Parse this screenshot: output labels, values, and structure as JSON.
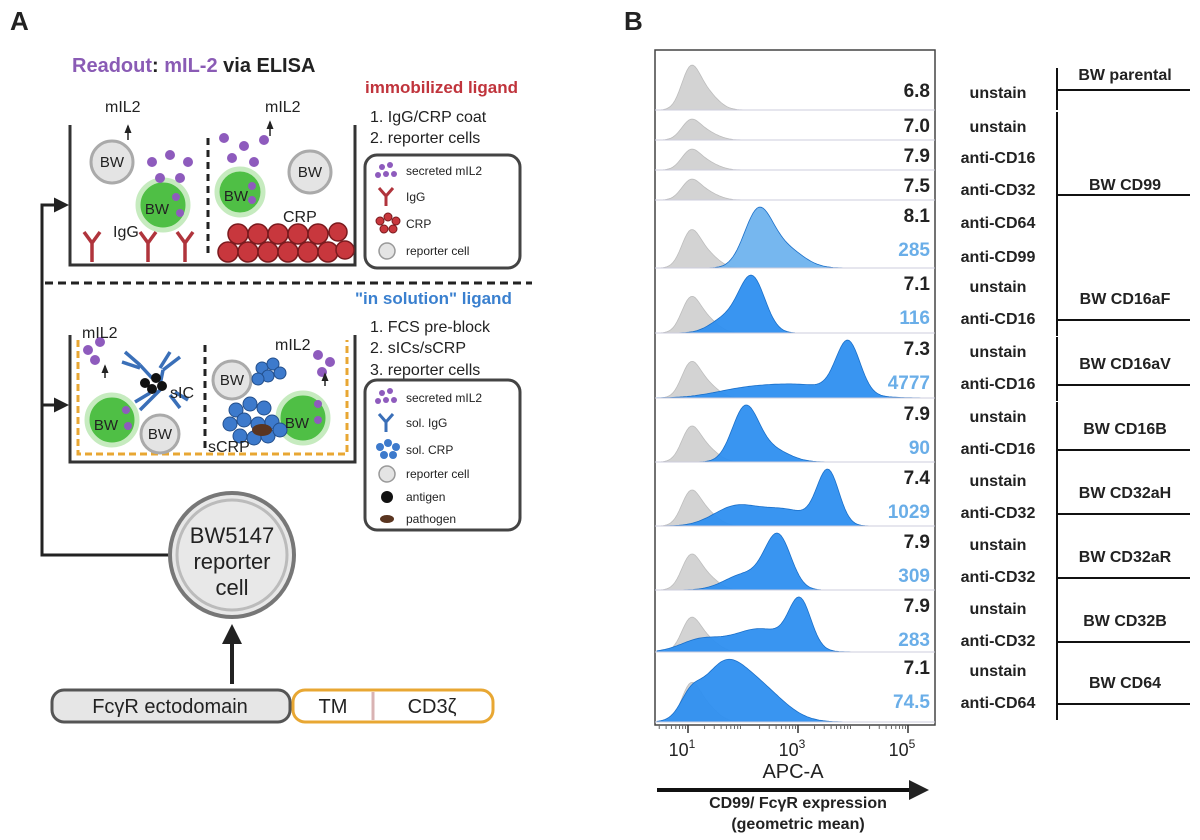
{
  "panel_a": {
    "label": "A",
    "readout": {
      "word": "Readout",
      "colon": ":",
      "target": "mIL-2",
      "method": "via ELISA"
    },
    "immobilized": {
      "title": "immobilized ligand",
      "steps": [
        "1.  IgG/CRP coat",
        "2.  reporter cells"
      ],
      "well": {
        "mil2": "mIL2",
        "igg": "IgG",
        "crp": "CRP"
      },
      "legend": [
        "secreted mIL2",
        "IgG",
        "CRP",
        "reporter cell"
      ]
    },
    "in_solution": {
      "title": "\"in solution\" ligand",
      "steps": [
        "1.  FCS pre-block",
        "2.  sICs/sCRP",
        "3.  reporter cells"
      ],
      "well": {
        "mil2": "mIL2",
        "sic": "sIC",
        "scrp": "sCRP"
      },
      "legend": [
        "secreted mIL2",
        "sol. IgG",
        "sol. CRP",
        "reporter cell",
        "antigen",
        "pathogen"
      ]
    },
    "cell_short": "BW",
    "reporter": [
      "BW5147",
      "reporter",
      "cell"
    ],
    "construct": {
      "ectodomain": "FcγR  ectodomain",
      "tm": "TM",
      "signal": "CD3ζ"
    }
  },
  "panel_b": {
    "label": "B",
    "lanes": [
      {
        "unstained": "6.8"
      },
      {
        "unstained": "7.0"
      },
      {
        "unstained": "7.9"
      },
      {
        "unstained": "7.5"
      },
      {
        "unstained": "8.1",
        "stained": "285"
      },
      {
        "unstained": "7.1",
        "stained": "116"
      },
      {
        "unstained": "7.3",
        "stained": "4777"
      },
      {
        "unstained": "7.9",
        "stained": "90"
      },
      {
        "unstained": "7.4",
        "stained": "1029"
      },
      {
        "unstained": "7.9",
        "stained": "309"
      },
      {
        "unstained": "7.9",
        "stained": "283"
      },
      {
        "unstained": "7.1",
        "stained": "74.5"
      }
    ],
    "groups": [
      {
        "name": "BW parental",
        "rows": [
          "unstain"
        ]
      },
      {
        "name": "BW CD99",
        "rows": [
          "unstain",
          "anti-CD16",
          "anti-CD32",
          "anti-CD64",
          "anti-CD99"
        ]
      },
      {
        "name": "BW CD16aF",
        "rows": [
          "unstain",
          "anti-CD16"
        ]
      },
      {
        "name": "BW CD16aV",
        "rows": [
          "unstain",
          "anti-CD16"
        ]
      },
      {
        "name": "BW CD16B",
        "rows": [
          "unstain",
          "anti-CD16"
        ]
      },
      {
        "name": "BW CD32aH",
        "rows": [
          "unstain",
          "anti-CD32"
        ]
      },
      {
        "name": "BW CD32aR",
        "rows": [
          "unstain",
          "anti-CD32"
        ]
      },
      {
        "name": "BW CD32B",
        "rows": [
          "unstain",
          "anti-CD32"
        ]
      },
      {
        "name": "BW CD64",
        "rows": [
          "unstain",
          "anti-CD64"
        ]
      }
    ],
    "x_ticks": [
      {
        "base": "10",
        "exp": "1"
      },
      {
        "base": "10",
        "exp": "3"
      },
      {
        "base": "10",
        "exp": "5"
      }
    ],
    "x_label": "APC-A",
    "footer": [
      "CD99/ FcγR expression",
      "(geometric mean)"
    ]
  }
}
